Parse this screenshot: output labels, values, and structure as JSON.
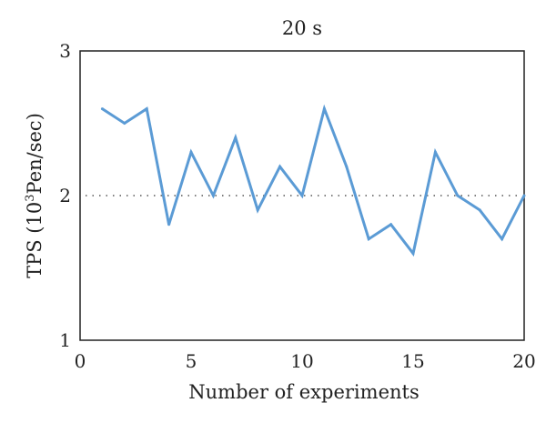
{
  "chart_data": {
    "type": "line",
    "title": "20 s",
    "xlabel": "Number of experiments",
    "ylabel": "TPS (10",
    "ylabel_sup": "3",
    "ylabel_rest": "Pen/sec)",
    "xlim": [
      0,
      20
    ],
    "ylim": [
      1,
      3
    ],
    "x_ticks": [
      "0",
      "5",
      "10",
      "15",
      "20"
    ],
    "y_ticks": [
      "1",
      "2",
      "3"
    ],
    "reference_line": 2,
    "grid": false,
    "line_color": "#5b9bd5",
    "reference_color": "#333333",
    "series": [
      {
        "x": [
          1,
          2,
          3,
          4,
          5,
          6,
          7,
          8,
          9,
          10,
          11,
          12,
          13,
          14,
          15,
          16,
          17,
          18,
          19,
          20
        ],
        "values": [
          2.6,
          2.5,
          2.6,
          1.8,
          2.3,
          2.0,
          2.4,
          1.9,
          2.2,
          2.0,
          2.6,
          2.2,
          1.7,
          1.8,
          1.6,
          2.3,
          2.0,
          1.9,
          1.7,
          2.0
        ]
      }
    ]
  }
}
